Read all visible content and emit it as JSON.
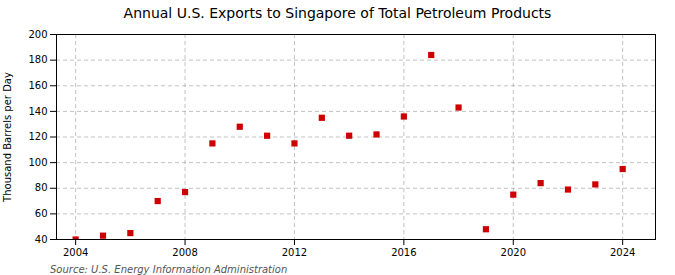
{
  "chart_data": {
    "type": "scatter",
    "title": "Annual U.S. Exports to Singapore of Total Petroleum Products",
    "ylabel": "Thousand Barrels per Day",
    "annotations": [
      "Source: U.S. Energy Information Administration"
    ],
    "x": [
      2004,
      2005,
      2006,
      2007,
      2008,
      2009,
      2010,
      2011,
      2012,
      2013,
      2014,
      2015,
      2016,
      2017,
      2018,
      2019,
      2020,
      2021,
      2022,
      2023,
      2024
    ],
    "values": [
      40,
      43,
      45,
      70,
      77,
      115,
      128,
      121,
      115,
      135,
      121,
      122,
      136,
      184,
      143,
      48,
      75,
      84,
      79,
      83,
      95
    ],
    "color": "#cc0000",
    "marker": "square",
    "xlim": [
      2003.3,
      2025.2
    ],
    "xticks": [
      2004,
      2008,
      2012,
      2016,
      2020,
      2024
    ],
    "ylim": [
      40,
      200
    ],
    "yticks": [
      40,
      60,
      80,
      100,
      120,
      140,
      160,
      180,
      200
    ],
    "grid": true
  }
}
